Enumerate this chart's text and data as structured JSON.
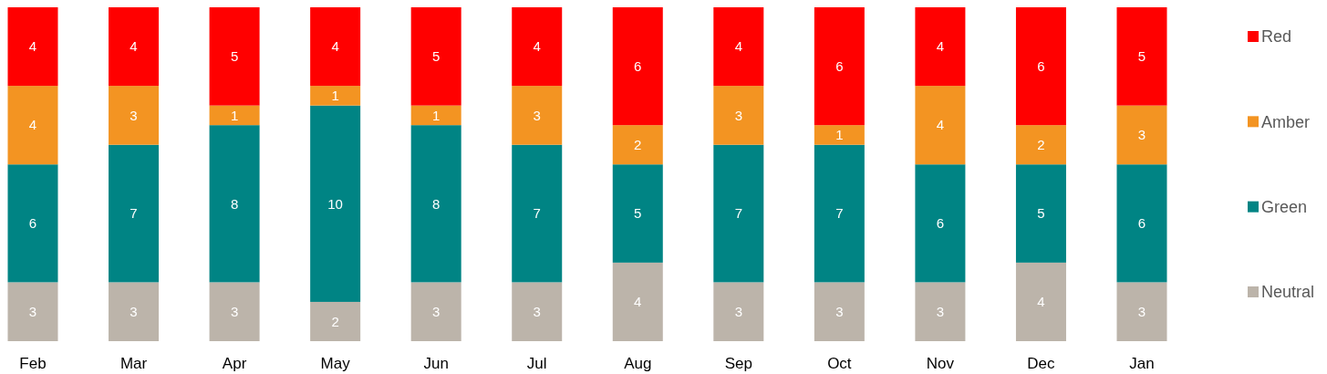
{
  "chart_data": {
    "type": "bar",
    "stacked": true,
    "data_labels": true,
    "legend": "right",
    "categories": [
      "Feb",
      "Mar",
      "Apr",
      "May",
      "Jun",
      "Jul",
      "Aug",
      "Sep",
      "Oct",
      "Nov",
      "Dec",
      "Jan"
    ],
    "series": [
      {
        "name": "Neutral",
        "color": "#bcb4aa",
        "values": [
          3,
          3,
          3,
          2,
          3,
          3,
          4,
          3,
          3,
          3,
          4,
          3
        ]
      },
      {
        "name": "Green",
        "color": "#008484",
        "values": [
          6,
          7,
          8,
          10,
          8,
          7,
          5,
          7,
          7,
          6,
          5,
          6
        ]
      },
      {
        "name": "Amber",
        "color": "#f39422",
        "values": [
          4,
          3,
          1,
          1,
          1,
          3,
          2,
          3,
          1,
          4,
          2,
          3
        ]
      },
      {
        "name": "Red",
        "color": "#ff0000",
        "values": [
          4,
          4,
          5,
          4,
          5,
          4,
          6,
          4,
          6,
          4,
          6,
          5
        ]
      }
    ]
  }
}
